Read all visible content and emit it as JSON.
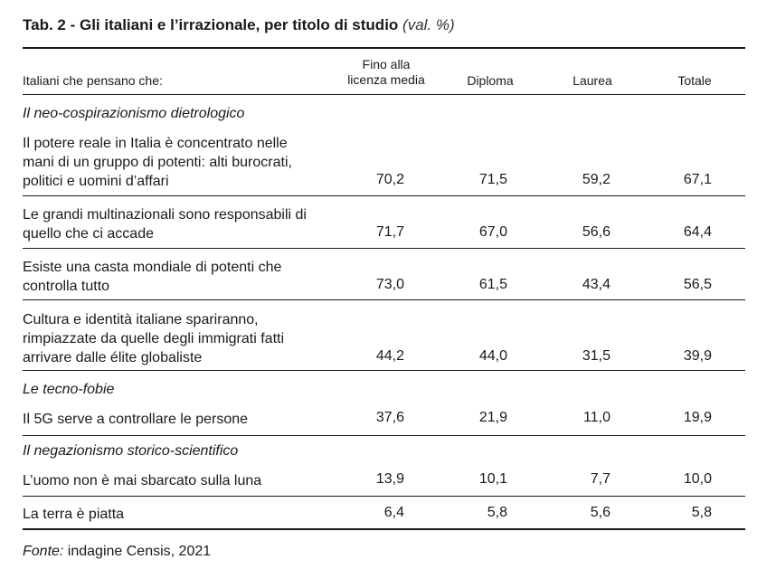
{
  "title": {
    "main": "Tab. 2 - Gli italiani e l’irrazionale, per titolo di studio",
    "unit": "(val. %)"
  },
  "header": {
    "row_label": "Italiani che pensano che:",
    "columns": [
      "Fino alla licenza media",
      "Diploma",
      "Laurea",
      "Totale"
    ],
    "col1_line1": "Fino alla",
    "col1_line2": "licenza media"
  },
  "sections": [
    {
      "category": "Il neo-cospirazionismo dietrologico",
      "rows": [
        {
          "label_lines": [
            "Il potere reale in Italia è concentrato nelle",
            "mani di un gruppo di potenti: alti burocrati,",
            "politici e uomini d’affari"
          ],
          "values": [
            "70,2",
            "71,5",
            "59,2",
            "67,1"
          ]
        },
        {
          "label_lines": [
            "Le grandi multinazionali sono responsabili di",
            "quello che ci accade"
          ],
          "values": [
            "71,7",
            "67,0",
            "56,6",
            "64,4"
          ]
        },
        {
          "label_lines": [
            "Esiste una casta mondiale di potenti che",
            "controlla tutto"
          ],
          "values": [
            "73,0",
            "61,5",
            "43,4",
            "56,5"
          ]
        },
        {
          "label_lines": [
            "Cultura e identità italiane spariranno,",
            "rimpiazzate da quelle degli immigrati fatti",
            "arrivare dalle élite globaliste"
          ],
          "values": [
            "44,2",
            "44,0",
            "31,5",
            "39,9"
          ]
        }
      ]
    },
    {
      "category": "Le tecno-fobie",
      "rows": [
        {
          "label_lines": [
            "Il 5G serve a controllare le persone"
          ],
          "values": [
            "37,6",
            "21,9",
            "11,0",
            "19,9"
          ]
        }
      ]
    },
    {
      "category": "Il negazionismo storico-scientifico",
      "rows": [
        {
          "label_lines": [
            "L’uomo non è mai sbarcato sulla luna"
          ],
          "values": [
            "13,9",
            "10,1",
            "7,7",
            "10,0"
          ]
        },
        {
          "label_lines": [
            "La terra è piatta"
          ],
          "values": [
            "6,4",
            "5,8",
            "5,6",
            "5,8"
          ]
        }
      ]
    }
  ],
  "source": {
    "prefix": "Fonte:",
    "text": " indagine Censis, 2021"
  }
}
